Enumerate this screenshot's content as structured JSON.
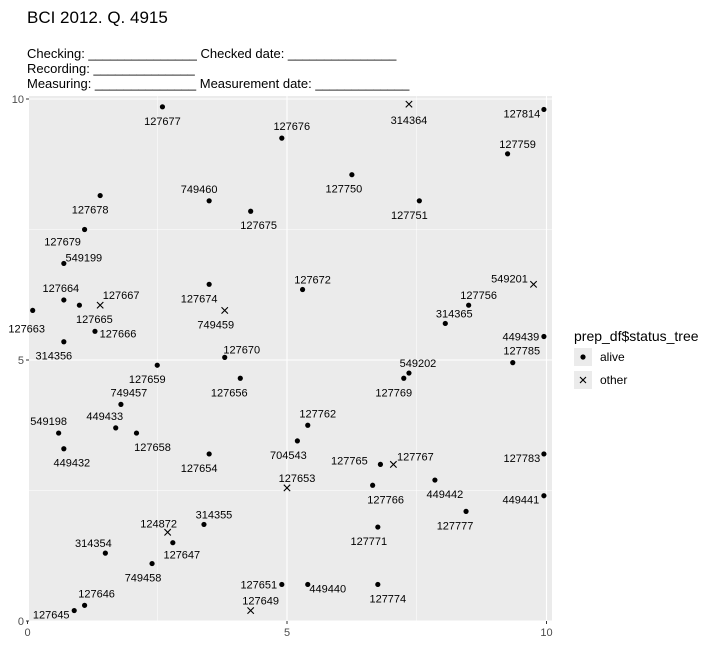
{
  "header": {
    "title": "BCI 2012. Q. 4915",
    "line1": "Checking: _______________ Checked date: _______________",
    "line2": "Recording: ______________",
    "line3": "Measuring: ______________ Measurement date: _____________"
  },
  "chart_data": {
    "type": "scatter",
    "xlim": [
      0,
      10
    ],
    "ylim": [
      0,
      10
    ],
    "x_ticks": [
      0,
      5,
      10
    ],
    "y_ticks": [
      0,
      5,
      10
    ],
    "grid": true,
    "legend": {
      "title": "prep_df$status_tree",
      "placement": "right",
      "entries": [
        {
          "label": "alive",
          "shape": "dot"
        },
        {
          "label": "other",
          "shape": "cross"
        }
      ]
    },
    "points": [
      {
        "tag": "127677",
        "x": 2.6,
        "y": 9.85,
        "status": "alive"
      },
      {
        "tag": "314364",
        "x": 7.35,
        "y": 9.9,
        "status": "other"
      },
      {
        "tag": "127814",
        "x": 9.95,
        "y": 9.8,
        "status": "alive"
      },
      {
        "tag": "127676",
        "x": 4.9,
        "y": 9.25,
        "status": "alive"
      },
      {
        "tag": "127759",
        "x": 9.25,
        "y": 8.95,
        "status": "alive"
      },
      {
        "tag": "127750",
        "x": 6.25,
        "y": 8.55,
        "status": "alive"
      },
      {
        "tag": "127678",
        "x": 1.4,
        "y": 8.15,
        "status": "alive"
      },
      {
        "tag": "749460",
        "x": 3.5,
        "y": 8.05,
        "status": "alive"
      },
      {
        "tag": "127751",
        "x": 7.55,
        "y": 8.05,
        "status": "alive"
      },
      {
        "tag": "127675",
        "x": 4.3,
        "y": 7.85,
        "status": "alive"
      },
      {
        "tag": "127679",
        "x": 1.1,
        "y": 7.5,
        "status": "alive"
      },
      {
        "tag": "549199",
        "x": 0.7,
        "y": 6.85,
        "status": "alive"
      },
      {
        "tag": "549201",
        "x": 9.75,
        "y": 6.45,
        "status": "other"
      },
      {
        "tag": "127674",
        "x": 3.5,
        "y": 6.45,
        "status": "alive"
      },
      {
        "tag": "127672",
        "x": 5.3,
        "y": 6.35,
        "status": "alive"
      },
      {
        "tag": "127664",
        "x": 0.7,
        "y": 6.15,
        "status": "alive"
      },
      {
        "tag": "127667",
        "x": 1.4,
        "y": 6.05,
        "status": "other"
      },
      {
        "tag": "127665",
        "x": 1.0,
        "y": 6.05,
        "status": "alive"
      },
      {
        "tag": "127756",
        "x": 8.5,
        "y": 6.05,
        "status": "alive"
      },
      {
        "tag": "127663",
        "x": 0.1,
        "y": 5.95,
        "status": "alive"
      },
      {
        "tag": "749459",
        "x": 3.8,
        "y": 5.95,
        "status": "other"
      },
      {
        "tag": "314365",
        "x": 8.05,
        "y": 5.7,
        "status": "alive"
      },
      {
        "tag": "127666",
        "x": 1.3,
        "y": 5.55,
        "status": "alive"
      },
      {
        "tag": "449439",
        "x": 9.95,
        "y": 5.45,
        "status": "alive"
      },
      {
        "tag": "314356",
        "x": 0.7,
        "y": 5.35,
        "status": "alive"
      },
      {
        "tag": "127670",
        "x": 3.8,
        "y": 5.05,
        "status": "alive"
      },
      {
        "tag": "127785",
        "x": 9.35,
        "y": 4.95,
        "status": "alive"
      },
      {
        "tag": "127659",
        "x": 2.5,
        "y": 4.9,
        "status": "alive"
      },
      {
        "tag": "549202",
        "x": 7.35,
        "y": 4.75,
        "status": "alive"
      },
      {
        "tag": "127769",
        "x": 7.25,
        "y": 4.65,
        "status": "alive"
      },
      {
        "tag": "127656",
        "x": 4.1,
        "y": 4.65,
        "status": "alive"
      },
      {
        "tag": "749457",
        "x": 1.8,
        "y": 4.15,
        "status": "alive"
      },
      {
        "tag": "127762",
        "x": 5.4,
        "y": 3.75,
        "status": "alive"
      },
      {
        "tag": "449433",
        "x": 1.7,
        "y": 3.7,
        "status": "alive"
      },
      {
        "tag": "549198",
        "x": 0.6,
        "y": 3.6,
        "status": "alive"
      },
      {
        "tag": "127658",
        "x": 2.1,
        "y": 3.6,
        "status": "alive"
      },
      {
        "tag": "704543",
        "x": 5.2,
        "y": 3.45,
        "status": "alive"
      },
      {
        "tag": "449432",
        "x": 0.7,
        "y": 3.3,
        "status": "alive"
      },
      {
        "tag": "127654",
        "x": 3.5,
        "y": 3.2,
        "status": "alive"
      },
      {
        "tag": "127783",
        "x": 9.95,
        "y": 3.2,
        "status": "alive"
      },
      {
        "tag": "127765",
        "x": 6.8,
        "y": 3.0,
        "status": "alive"
      },
      {
        "tag": "127767",
        "x": 7.05,
        "y": 3.0,
        "status": "other"
      },
      {
        "tag": "449442",
        "x": 7.85,
        "y": 2.7,
        "status": "alive"
      },
      {
        "tag": "127766",
        "x": 6.65,
        "y": 2.6,
        "status": "alive"
      },
      {
        "tag": "127653",
        "x": 5.0,
        "y": 2.55,
        "status": "other"
      },
      {
        "tag": "449441",
        "x": 9.95,
        "y": 2.4,
        "status": "alive"
      },
      {
        "tag": "127777",
        "x": 8.45,
        "y": 2.1,
        "status": "alive"
      },
      {
        "tag": "314355",
        "x": 3.4,
        "y": 1.85,
        "status": "alive"
      },
      {
        "tag": "127771",
        "x": 6.75,
        "y": 1.8,
        "status": "alive"
      },
      {
        "tag": "124872",
        "x": 2.7,
        "y": 1.7,
        "status": "other"
      },
      {
        "tag": "127647",
        "x": 2.8,
        "y": 1.5,
        "status": "alive"
      },
      {
        "tag": "314354",
        "x": 1.5,
        "y": 1.3,
        "status": "alive"
      },
      {
        "tag": "749458",
        "x": 2.4,
        "y": 1.1,
        "status": "alive"
      },
      {
        "tag": "127651",
        "x": 4.9,
        "y": 0.7,
        "status": "alive"
      },
      {
        "tag": "449440",
        "x": 5.4,
        "y": 0.7,
        "status": "alive"
      },
      {
        "tag": "127774",
        "x": 6.75,
        "y": 0.7,
        "status": "alive"
      },
      {
        "tag": "127646",
        "x": 1.1,
        "y": 0.3,
        "status": "alive"
      },
      {
        "tag": "127649",
        "x": 4.3,
        "y": 0.2,
        "status": "other"
      },
      {
        "tag": "127645",
        "x": 0.9,
        "y": 0.2,
        "status": "alive"
      }
    ]
  }
}
